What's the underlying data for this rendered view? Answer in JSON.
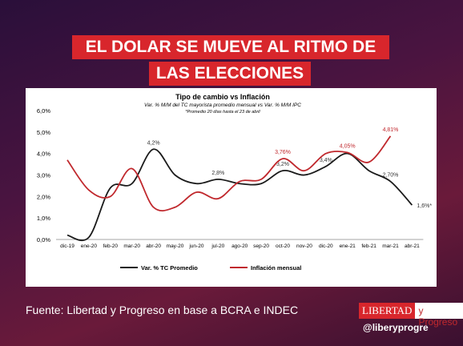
{
  "header": {
    "title_lines": [
      "EL DOLAR SE MUEVE AL RITMO DE",
      "LAS ELECCIONES"
    ]
  },
  "chart_data": {
    "type": "line",
    "title": "Tipo de cambio vs Inflación",
    "subtitle": "Var. % M/M del TC mayorista promedio mensual vs Var. % M/M IPC",
    "note": "*Promedio 20 días hasta el 23 de abril",
    "categories": [
      "dic-19",
      "ene-20",
      "feb-20",
      "mar-20",
      "abr-20",
      "may-20",
      "jun-20",
      "jul-20",
      "ago-20",
      "sep-20",
      "oct-20",
      "nov-20",
      "dic-20",
      "ene-21",
      "feb-21",
      "mar-21",
      "abr-21"
    ],
    "series": [
      {
        "name": "Var. % TC Promedio",
        "color": "#1a1a1a",
        "values": [
          0.2,
          0.1,
          2.4,
          2.6,
          4.2,
          3.0,
          2.6,
          2.8,
          2.6,
          2.6,
          3.2,
          3.0,
          3.4,
          4.0,
          3.2,
          2.7,
          1.6
        ],
        "value_labels": [
          null,
          null,
          null,
          null,
          "4,2%",
          null,
          null,
          "2,8%",
          null,
          null,
          "3,2%",
          null,
          "3,4%",
          null,
          null,
          "2,70%",
          "1,6%*"
        ]
      },
      {
        "name": "Inflación mensual",
        "color": "#c0282d",
        "values": [
          3.7,
          2.3,
          2.0,
          3.3,
          1.5,
          1.5,
          2.2,
          1.9,
          2.7,
          2.8,
          3.76,
          3.2,
          4.0,
          4.05,
          3.6,
          4.81,
          null
        ],
        "value_labels": [
          null,
          null,
          null,
          null,
          null,
          null,
          null,
          null,
          null,
          null,
          "3,76%",
          null,
          null,
          "4,05%",
          null,
          "4,81%",
          null
        ]
      }
    ],
    "ylim": [
      0,
      6
    ],
    "yticks": [
      {
        "value": 0,
        "label": "0,0%"
      },
      {
        "value": 1,
        "label": "1,0%"
      },
      {
        "value": 2,
        "label": "2,0%"
      },
      {
        "value": 3,
        "label": "3,0%"
      },
      {
        "value": 4,
        "label": "4,0%"
      },
      {
        "value": 5,
        "label": "5,0%"
      },
      {
        "value": 6,
        "label": "6,0%"
      }
    ],
    "legend": "bottom"
  },
  "footer": {
    "source": "Fuente: Libertad y Progreso en  base a BCRA e INDEC",
    "brand": "LIBERTAD",
    "brand2": "y Progreso",
    "handle": "@liberyprogre"
  }
}
